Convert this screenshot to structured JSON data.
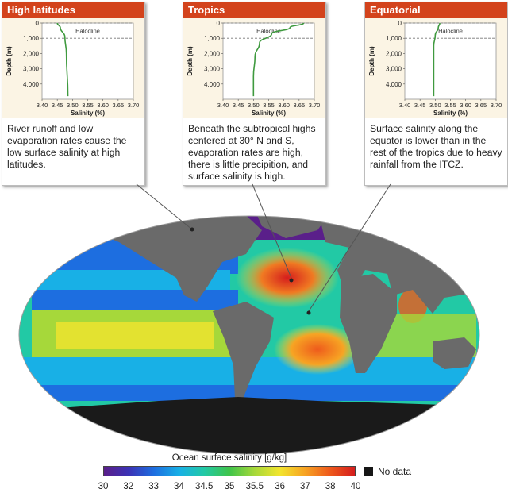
{
  "panels": [
    {
      "title": "High latitudes",
      "halocline_label": "Halocline",
      "caption": "River runoff and low evaporation rates cause the low surface salinity at high latitudes.",
      "profile": [
        [
          3.45,
          0
        ],
        [
          3.46,
          300
        ],
        [
          3.475,
          900
        ],
        [
          3.48,
          2000
        ],
        [
          3.485,
          4800
        ]
      ]
    },
    {
      "title": "Tropics",
      "halocline_label": "Halocline",
      "caption": "Beneath the subtropical highs centered at 30° N and S, evaporation rates are high, there is little precipition, and surface salinity is high.",
      "profile": [
        [
          3.665,
          0
        ],
        [
          3.62,
          300
        ],
        [
          3.56,
          700
        ],
        [
          3.52,
          1300
        ],
        [
          3.505,
          2200
        ],
        [
          3.5,
          3500
        ],
        [
          3.5,
          4800
        ]
      ]
    },
    {
      "title": "Equatorial",
      "halocline_label": "Halocline",
      "caption": "Surface salinity along the equator is lower than in the rest of the tropics due to heavy rainfall from the ITCZ.",
      "profile": [
        [
          3.515,
          0
        ],
        [
          3.51,
          300
        ],
        [
          3.5,
          800
        ],
        [
          3.495,
          1500
        ],
        [
          3.495,
          4800
        ]
      ]
    }
  ],
  "chart_data": [
    {
      "type": "line",
      "title": "High latitudes",
      "xlabel": "Salinity (%)",
      "ylabel": "Depth (m)",
      "xlim": [
        3.4,
        3.7
      ],
      "ylim": [
        0,
        5000
      ],
      "x_ticks": [
        "3.40",
        "3.45",
        "3.50",
        "3.55",
        "3.60",
        "3.65",
        "3.70"
      ],
      "y_ticks": [
        "0",
        "1,000",
        "2,000",
        "3,000",
        "4,000"
      ],
      "y_inverted": true,
      "annotations": [
        "Halocline"
      ],
      "series": [
        {
          "x": [
            3.45,
            3.46,
            3.475,
            3.48,
            3.485
          ],
          "y": [
            0,
            300,
            900,
            2000,
            4800
          ]
        }
      ]
    },
    {
      "type": "line",
      "title": "Tropics",
      "xlabel": "Salinity (%)",
      "ylabel": "Depth (m)",
      "xlim": [
        3.4,
        3.7
      ],
      "ylim": [
        0,
        5000
      ],
      "x_ticks": [
        "3.40",
        "3.45",
        "3.50",
        "3.55",
        "3.60",
        "3.65",
        "3.70"
      ],
      "y_ticks": [
        "0",
        "1,000",
        "2,000",
        "3,000",
        "4,000"
      ],
      "y_inverted": true,
      "annotations": [
        "Halocline"
      ],
      "series": [
        {
          "x": [
            3.665,
            3.62,
            3.56,
            3.52,
            3.505,
            3.5,
            3.5
          ],
          "y": [
            0,
            300,
            700,
            1300,
            2200,
            3500,
            4800
          ]
        }
      ]
    },
    {
      "type": "line",
      "title": "Equatorial",
      "xlabel": "Salinity (%)",
      "ylabel": "Depth (m)",
      "xlim": [
        3.4,
        3.7
      ],
      "ylim": [
        0,
        5000
      ],
      "x_ticks": [
        "3.40",
        "3.45",
        "3.50",
        "3.55",
        "3.60",
        "3.65",
        "3.70"
      ],
      "y_ticks": [
        "0",
        "1,000",
        "2,000",
        "3,000",
        "4,000"
      ],
      "y_inverted": true,
      "annotations": [
        "Halocline"
      ],
      "series": [
        {
          "x": [
            3.515,
            3.51,
            3.5,
            3.495,
            3.495
          ],
          "y": [
            0,
            300,
            800,
            1500,
            4800
          ]
        }
      ]
    },
    {
      "type": "heatmap",
      "title": "Ocean surface salinity [g/kg]",
      "colorbar_ticks": [
        "30",
        "32",
        "33",
        "34",
        "34.5",
        "35",
        "35.5",
        "36",
        "37",
        "38",
        "40"
      ],
      "legend_extra": "No data"
    }
  ],
  "axes": {
    "xlabel": "Salinity (%)",
    "ylabel": "Depth (m)",
    "x_ticks": [
      "3.40",
      "3.45",
      "3.50",
      "3.55",
      "3.60",
      "3.65",
      "3.70"
    ],
    "y_ticks": [
      "0",
      "1,000",
      "2,000",
      "3,000",
      "4,000"
    ]
  },
  "colorbar": {
    "title": "Ocean surface salinity [g/kg]",
    "ticks": [
      "30",
      "32",
      "33",
      "34",
      "34.5",
      "35",
      "35.5",
      "36",
      "37",
      "38",
      "40"
    ],
    "colors": [
      "#5a1f8a",
      "#3b33b6",
      "#1d6ee0",
      "#18b0e6",
      "#22c9a5",
      "#3fc44a",
      "#a6d83a",
      "#f2e52e",
      "#f7a423",
      "#ee5a1c",
      "#d51d1d"
    ],
    "no_data_label": "No data"
  },
  "colors": {
    "header": "#d3431c",
    "plot_bg": "#fbf4e4",
    "curve": "#3f9a3f",
    "land": "#6a6a6a",
    "antarctica": "#1a1a1a"
  }
}
